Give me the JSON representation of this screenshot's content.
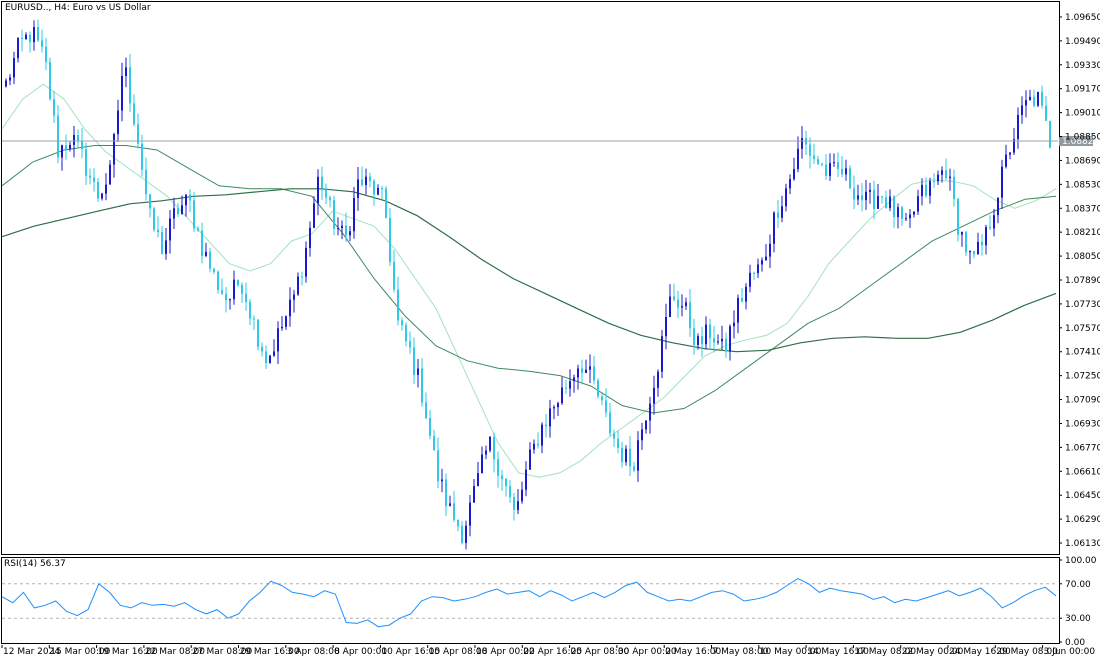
{
  "window": {
    "title": "EURUSD.., H4:  Euro vs US Dollar"
  },
  "colors": {
    "background": "#ffffff",
    "frame": "#000000",
    "bull_candle": "#1a1acd",
    "bear_candle": "#2fc8e6",
    "ma_fast": "#a3e2be",
    "ma_mid": "#3c8a5e",
    "ma_slow": "#2f6e47",
    "rsi_line": "#1e90ff",
    "rsi_level": "#b0b0b0",
    "bid_line": "#9aa3a8",
    "bid_tag": "#8f9aa0"
  },
  "chart_data": [
    {
      "type": "candlestick",
      "title": "EURUSD.., H4:  Euro vs US Dollar",
      "ylim": [
        1.0605,
        1.0975
      ],
      "y_ticks": [
        "1.09650",
        "1.09490",
        "1.09330",
        "1.09170",
        "1.09010",
        "1.08850",
        "1.08690",
        "1.08530",
        "1.08370",
        "1.08210",
        "1.08050",
        "1.07890",
        "1.07730",
        "1.07570",
        "1.07410",
        "1.07250",
        "1.07090",
        "1.06930",
        "1.06770",
        "1.06610",
        "1.06450",
        "1.06290",
        "1.06130"
      ],
      "x_ticks": [
        "12 Mar 2024",
        "15 Mar 00:00",
        "19 Mar 16:00",
        "22 Mar 08:00",
        "27 Mar 08:00",
        "29 Mar 16:00",
        "3 Apr 08:00",
        "8 Apr 00:00",
        "10 Apr 16:00",
        "15 Apr 08:00",
        "18 Apr 00:00",
        "22 Apr 16:00",
        "25 Apr 08:00",
        "30 Apr 00:00",
        "2 May 16:00",
        "7 May 08:00",
        "10 May 00:00",
        "14 May 16:00",
        "17 May 08:00",
        "22 May 00:00",
        "24 May 16:00",
        "29 May 08:00",
        "3 Jun 00:00"
      ],
      "current_price": "1.08820",
      "close_path": [
        1.092,
        1.0945,
        1.0955,
        1.0935,
        1.0875,
        1.0885,
        1.0868,
        1.0845,
        1.086,
        1.0935,
        1.089,
        1.083,
        1.081,
        1.0835,
        1.0842,
        1.0812,
        1.079,
        1.0775,
        1.079,
        1.076,
        1.0735,
        1.0755,
        1.0775,
        1.081,
        1.086,
        1.083,
        1.0815,
        1.0855,
        1.0852,
        1.084,
        1.076,
        1.074,
        1.071,
        1.066,
        1.0635,
        1.062,
        1.065,
        1.068,
        1.066,
        1.063,
        1.0665,
        1.069,
        1.0705,
        1.072,
        1.0735,
        1.072,
        1.0695,
        1.0675,
        1.0665,
        1.07,
        1.0735,
        1.078,
        1.077,
        1.0745,
        1.0755,
        1.074,
        1.077,
        1.079,
        1.08,
        1.0835,
        1.0855,
        1.0882,
        1.087,
        1.086,
        1.0862,
        1.085,
        1.084,
        1.0848,
        1.0835,
        1.0822,
        1.0845,
        1.0852,
        1.0865,
        1.0825,
        1.08,
        1.0815,
        1.0848,
        1.088,
        1.0905,
        1.0912,
        1.0882
      ],
      "series": [
        {
          "name": "",
          "kind": "moving-average",
          "values": [
            1.089,
            1.091,
            1.092,
            1.091,
            1.089,
            1.0875,
            1.0865,
            1.0855,
            1.0845,
            1.083,
            1.0815,
            1.08,
            1.0795,
            1.08,
            1.0815,
            1.082,
            1.0835,
            1.083,
            1.0825,
            1.081,
            1.079,
            1.077,
            1.074,
            1.071,
            1.068,
            1.066,
            1.0657,
            1.066,
            1.0668,
            1.068,
            1.069,
            1.07,
            1.071,
            1.0724,
            1.0738,
            1.0745,
            1.0749,
            1.0752,
            1.076,
            1.0778,
            1.08,
            1.0815,
            1.083,
            1.0842,
            1.0853,
            1.0856,
            1.0855,
            1.0852,
            1.0843,
            1.0837,
            1.0842,
            1.085
          ]
        },
        {
          "name": "",
          "kind": "moving-average",
          "values": [
            1.0852,
            1.0868,
            1.0876,
            1.0879,
            1.0879,
            1.0876,
            1.0864,
            1.0852,
            1.085,
            1.085,
            1.0845,
            1.082,
            1.079,
            1.0765,
            1.0745,
            1.0735,
            1.073,
            1.0728,
            1.0725,
            1.0718,
            1.0705,
            1.07,
            1.0703,
            1.0715,
            1.073,
            1.0745,
            1.076,
            1.077,
            1.0785,
            1.08,
            1.0815,
            1.0825,
            1.0835,
            1.0843,
            1.0845
          ]
        },
        {
          "name": "",
          "kind": "moving-average",
          "values": [
            1.0818,
            1.0825,
            1.083,
            1.0835,
            1.084,
            1.0842,
            1.0845,
            1.0846,
            1.0848,
            1.085,
            1.085,
            1.0848,
            1.0842,
            1.0832,
            1.0818,
            1.0803,
            1.079,
            1.078,
            1.077,
            1.076,
            1.0752,
            1.0747,
            1.0743,
            1.0741,
            1.0742,
            1.0747,
            1.075,
            1.0751,
            1.075,
            1.075,
            1.0754,
            1.0762,
            1.0772,
            1.078
          ]
        }
      ]
    },
    {
      "type": "line",
      "title": "RSI(14) 56.37",
      "ylim": [
        0,
        100
      ],
      "y_ticks": [
        "100.00",
        "70.00",
        "30.00",
        "0.00"
      ],
      "levels": [
        70,
        30
      ],
      "series": [
        {
          "name": "RSI(14)",
          "values": [
            55,
            48,
            60,
            42,
            45,
            50,
            38,
            33,
            40,
            70,
            60,
            45,
            42,
            48,
            45,
            46,
            44,
            48,
            40,
            35,
            40,
            30,
            35,
            50,
            60,
            73,
            68,
            60,
            58,
            55,
            62,
            58,
            25,
            24,
            28,
            20,
            22,
            30,
            35,
            50,
            55,
            54,
            50,
            52,
            55,
            60,
            64,
            58,
            60,
            62,
            55,
            62,
            57,
            50,
            55,
            60,
            54,
            60,
            68,
            72,
            60,
            55,
            50,
            52,
            50,
            55,
            60,
            62,
            58,
            50,
            52,
            55,
            60,
            68,
            76,
            70,
            60,
            65,
            62,
            60,
            58,
            52,
            55,
            48,
            52,
            50,
            54,
            58,
            62,
            56,
            60,
            65,
            55,
            42,
            48,
            56,
            62,
            66,
            56
          ]
        }
      ]
    }
  ]
}
